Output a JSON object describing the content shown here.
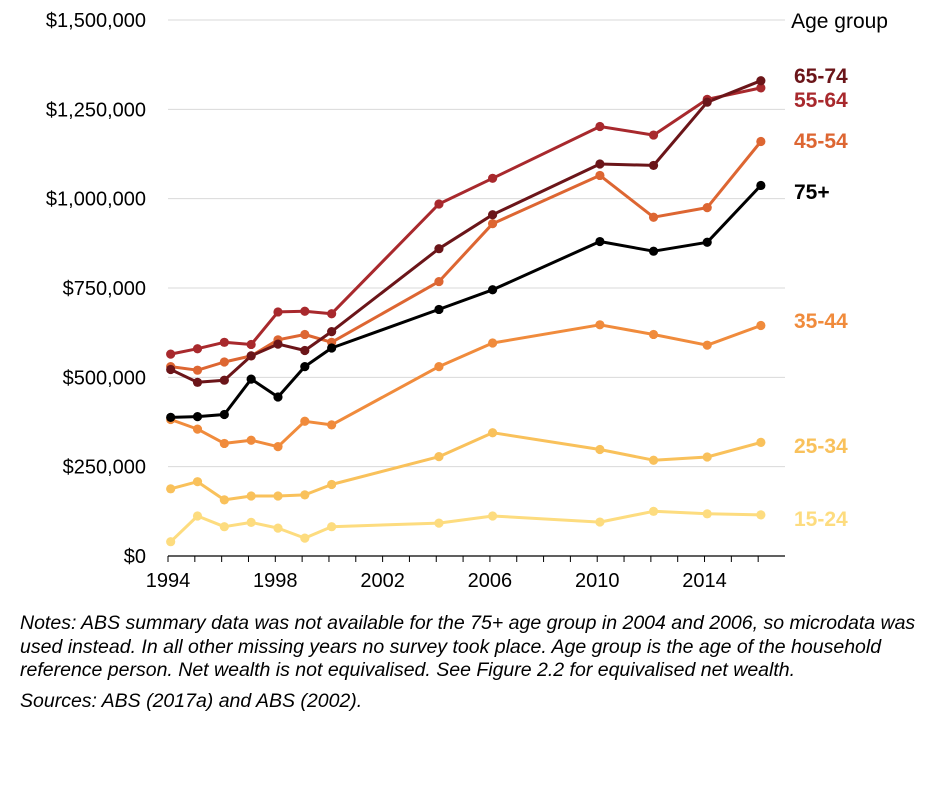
{
  "chart_data": {
    "type": "line",
    "title": "",
    "xlabel": "",
    "ylabel": "",
    "xlim": [
      1994,
      2017
    ],
    "ylim": [
      0,
      1500000
    ],
    "x_ticks": [
      1994,
      1998,
      2002,
      2006,
      2010,
      2014
    ],
    "x_tick_labels": [
      "1994",
      "1998",
      "2002",
      "2006",
      "2010",
      "2014"
    ],
    "y_ticks": [
      0,
      250000,
      500000,
      750000,
      1000000,
      1250000,
      1500000
    ],
    "y_tick_labels": [
      "$0",
      "$250,000",
      "$500,000",
      "$750,000",
      "$1,000,000",
      "$1,250,000",
      "$1,500,000"
    ],
    "grid": "horizontal",
    "legend_title": "Age group",
    "legend_placement": "right, labels at series ends",
    "series": [
      {
        "name": "15-24",
        "color": "#fddc7f",
        "x": [
          1994.1,
          1995.1,
          1996.1,
          1997.1,
          1998.1,
          1999.1,
          2000.1,
          2004.1,
          2006.1,
          2010.1,
          2012.1,
          2014.1,
          2016.1
        ],
        "y": [
          40000,
          112000,
          82000,
          94000,
          78000,
          50000,
          82000,
          92000,
          112000,
          95000,
          125000,
          118000,
          115000
        ]
      },
      {
        "name": "25-34",
        "color": "#f9c15b",
        "x": [
          1994.1,
          1995.1,
          1996.1,
          1997.1,
          1998.1,
          1999.1,
          2000.1,
          2004.1,
          2006.1,
          2010.1,
          2012.1,
          2014.1,
          2016.1
        ],
        "y": [
          188000,
          208000,
          157000,
          168000,
          168000,
          171000,
          200000,
          278000,
          345000,
          298000,
          268000,
          277000,
          318000
        ]
      },
      {
        "name": "35-44",
        "color": "#f08b3c",
        "x": [
          1994.1,
          1995.1,
          1996.1,
          1997.1,
          1998.1,
          1999.1,
          2000.1,
          2004.1,
          2006.1,
          2010.1,
          2012.1,
          2014.1,
          2016.1
        ],
        "y": [
          382000,
          355000,
          315000,
          324000,
          306000,
          377000,
          367000,
          530000,
          596000,
          647000,
          620000,
          590000,
          645000
        ]
      },
      {
        "name": "45-54",
        "color": "#dd6632",
        "x": [
          1994.1,
          1995.1,
          1996.1,
          1997.1,
          1998.1,
          1999.1,
          2000.1,
          2004.1,
          2006.1,
          2010.1,
          2012.1,
          2014.1,
          2016.1
        ],
        "y": [
          530000,
          520000,
          543000,
          560000,
          605000,
          620000,
          598000,
          768000,
          930000,
          1065000,
          948000,
          975000,
          1160000
        ]
      },
      {
        "name": "55-64",
        "color": "#a8292d",
        "x": [
          1994.1,
          1995.1,
          1996.1,
          1997.1,
          1998.1,
          1999.1,
          2000.1,
          2004.1,
          2006.1,
          2010.1,
          2012.1,
          2014.1,
          2016.1
        ],
        "y": [
          565000,
          580000,
          598000,
          592000,
          683000,
          685000,
          678000,
          985000,
          1057000,
          1202000,
          1178000,
          1278000,
          1310000
        ]
      },
      {
        "name": "65-74",
        "color": "#6b1519",
        "x": [
          1994.1,
          1995.1,
          1996.1,
          1997.1,
          1998.1,
          1999.1,
          2000.1,
          2004.1,
          2006.1,
          2010.1,
          2012.1,
          2014.1,
          2016.1
        ],
        "y": [
          522000,
          486000,
          492000,
          560000,
          593000,
          575000,
          628000,
          860000,
          955000,
          1097000,
          1093000,
          1270000,
          1330000
        ]
      },
      {
        "name": "75+",
        "color": "#000000",
        "x": [
          1994.1,
          1995.1,
          1996.1,
          1997.1,
          1998.1,
          1999.1,
          2000.1,
          2004.1,
          2006.1,
          2010.1,
          2012.1,
          2014.1,
          2016.1
        ],
        "y": [
          388000,
          390000,
          396000,
          495000,
          445000,
          530000,
          582000,
          690000,
          745000,
          880000,
          853000,
          878000,
          1037000
        ]
      }
    ]
  },
  "notes": "Notes: ABS summary data was not available for the 75+ age group in 2004 and 2006, so microdata was used instead. In all other missing years no survey took place. Age group is the age of the household reference person. Net wealth is not equivalised. See Figure 2.2 for equivalised net wealth.",
  "sources": "Sources: ABS (2017a) and ABS (2002)."
}
